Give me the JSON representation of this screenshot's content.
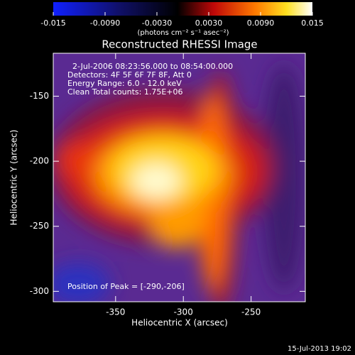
{
  "chart_data": {
    "type": "heatmap",
    "title": "Reconstructed RHESSI Image",
    "annotations": [
      "2-Jul-2006 08:23:56.000 to 08:54:00.000",
      "Detectors: 4F 5F 6F 7F 8F, Att 0",
      "Energy Range: 6.0 - 12.0 keV",
      "Clean     Total counts: 1.75E+06"
    ],
    "peak_label": "Position of Peak = [-290,-206]",
    "xlabel": "Heliocentric X (arcsec)",
    "ylabel": "Heliocentric Y (arcsec)",
    "xlim": [
      -396,
      -210
    ],
    "xticks": [
      -350,
      -300,
      -250
    ],
    "ylim": [
      -308,
      -117
    ],
    "yticks": [
      -150,
      -200,
      -250,
      -300
    ],
    "colorbar": {
      "label": "(photons cm⁻² s⁻¹ asec⁻²)",
      "lim": [
        -0.015,
        0.015
      ],
      "ticks": [
        -0.015,
        {
          "value": -0.009,
          "label": "-0.0090"
        },
        {
          "value": -0.003,
          "label": "-0.0030"
        },
        {
          "value": 0.003,
          "label": "0.0030"
        },
        {
          "value": 0.009,
          "label": "0.0090"
        },
        0.015
      ]
    },
    "timestamp": "15-Jul-2013 19:02"
  }
}
